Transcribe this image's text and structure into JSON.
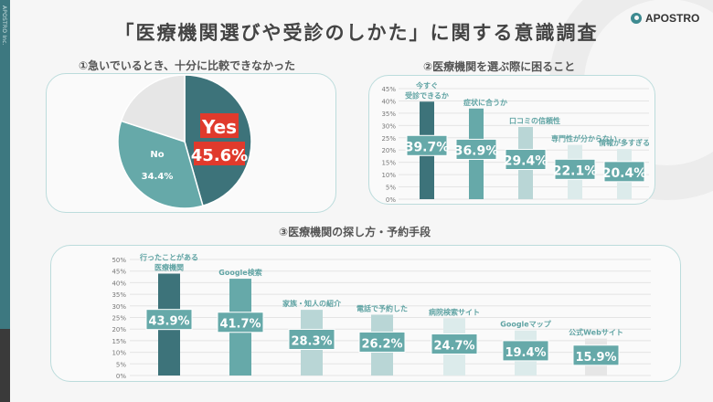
{
  "sidebar_text": "APOSTRO Inc.",
  "title": "「医療機関選びや受診のしかた」に関する意識調査",
  "logo": "APOSTRO",
  "colors": {
    "dark": "#3d737a",
    "mid": "#66a9a9",
    "light": "#b9d6d6",
    "lighter": "#dcebeb",
    "grey": "#e6e6e6",
    "label": "#5fa3a3",
    "yes_bg": "#e03a2c"
  },
  "chart_data": [
    {
      "type": "pie",
      "title": "①急いでいるとき、十分に比較できなかった",
      "slices": [
        {
          "name": "Yes",
          "value": 45.6,
          "label": "45.6%"
        },
        {
          "name": "No",
          "value": 34.4,
          "label": "34.4%"
        },
        {
          "name": "",
          "value": 20.0,
          "label": ""
        }
      ]
    },
    {
      "type": "bar",
      "title": "②医療機関を選ぶ際に困ること",
      "categories": [
        [
          "今すぐ",
          "受診できるか"
        ],
        [
          "症状に合うか"
        ],
        [
          "口コミの信頼性"
        ],
        [
          "専門性が分からない"
        ],
        [
          "情報が多すぎる"
        ]
      ],
      "values": [
        39.7,
        36.9,
        29.4,
        22.1,
        20.4
      ],
      "value_labels": [
        "39.7%",
        "36.9%",
        "29.4%",
        "22.1%",
        "20.4%"
      ],
      "yticks": [
        "0%",
        "5%",
        "10%",
        "15%",
        "20%",
        "25%",
        "30%",
        "35%",
        "40%",
        "45%"
      ],
      "ylim": [
        0,
        45
      ],
      "grid": true
    },
    {
      "type": "bar",
      "title": "③医療機関の探し方・予約手段",
      "categories": [
        [
          "行ったことがある",
          "医療機関"
        ],
        [
          "Google検索"
        ],
        [
          "家族・知人の紹介"
        ],
        [
          "電話で予約した"
        ],
        [
          "病院検索サイト"
        ],
        [
          "Googleマップ"
        ],
        [
          "公式Webサイト"
        ]
      ],
      "values": [
        43.9,
        41.7,
        28.3,
        26.2,
        24.7,
        19.4,
        15.9
      ],
      "value_labels": [
        "43.9%",
        "41.7%",
        "28.3%",
        "26.2%",
        "24.7%",
        "19.4%",
        "15.9%"
      ],
      "yticks": [
        "0%",
        "5%",
        "10%",
        "15%",
        "20%",
        "25%",
        "30%",
        "35%",
        "40%",
        "45%",
        "50%"
      ],
      "ylim": [
        0,
        50
      ],
      "grid": true
    }
  ]
}
